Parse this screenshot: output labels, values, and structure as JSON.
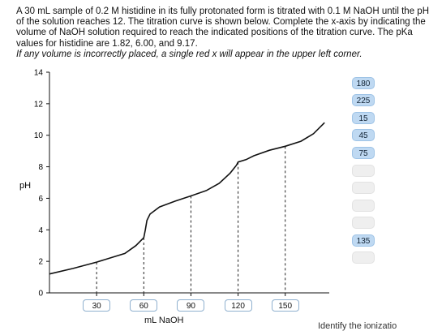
{
  "prompt": {
    "lines": [
      "A 30 mL sample of 0.2 M histidine in its fully protonated form is titrated with 0.1 M NaOH until the pH",
      "of the solution reaches 12. The titration curve is shown below. Complete the x-axis by indicating the",
      "volume of NaOH solution required to reach the indicated positions of the titration curve. The pKa",
      "values for histidine are 1.82, 6.00, and 9.17."
    ],
    "note": "If any volume is incorrectly placed, a single red x will appear in the upper left corner."
  },
  "answer_bank": [
    {
      "value": "180",
      "state": "filled"
    },
    {
      "value": "225",
      "state": "filled"
    },
    {
      "value": "15",
      "state": "filled"
    },
    {
      "value": "45",
      "state": "filled"
    },
    {
      "value": "75",
      "state": "filled"
    },
    {
      "value": "",
      "state": "empty"
    },
    {
      "value": "",
      "state": "empty"
    },
    {
      "value": "",
      "state": "empty"
    },
    {
      "value": "",
      "state": "empty"
    },
    {
      "value": "135",
      "state": "filled"
    },
    {
      "value": "",
      "state": "empty"
    }
  ],
  "x_slots": [
    "30",
    "60",
    "90",
    "120",
    "150"
  ],
  "footer_text": "Identify the ionizatio",
  "chart_data": {
    "type": "line",
    "ylabel": "pH",
    "xlabel": "mL NaOH",
    "ylim": [
      0,
      14
    ],
    "yticks": [
      "0",
      "2",
      "4",
      "6",
      "8",
      "10",
      "12",
      "14"
    ],
    "x": [
      0,
      15,
      30,
      48,
      55,
      60,
      61,
      62,
      64,
      70,
      80,
      90,
      100,
      108,
      115,
      119,
      120,
      125,
      130,
      140,
      150,
      160,
      168,
      175
    ],
    "y": [
      1.2,
      1.55,
      1.95,
      2.5,
      3.0,
      3.5,
      4.0,
      4.6,
      5.0,
      5.45,
      5.82,
      6.15,
      6.5,
      6.95,
      7.6,
      8.1,
      8.3,
      8.45,
      8.7,
      9.05,
      9.3,
      9.62,
      10.1,
      10.8
    ],
    "dashed_x": [
      30,
      60,
      90,
      120,
      150
    ],
    "grid": false
  }
}
